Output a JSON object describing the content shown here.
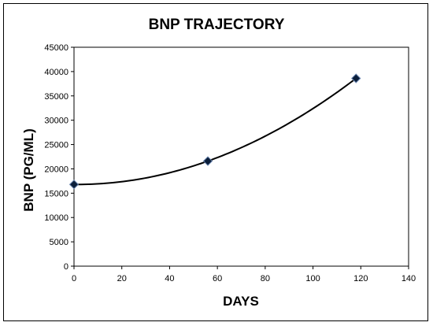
{
  "chart_data": {
    "type": "scatter",
    "title": "BNP TRAJECTORY",
    "xlabel": "DAYS",
    "ylabel": "BNP (PG/ML)",
    "xlim": [
      0,
      140
    ],
    "ylim": [
      0,
      45000
    ],
    "x_ticks": [
      "0",
      "20",
      "40",
      "60",
      "80",
      "100",
      "120",
      "140"
    ],
    "y_ticks": [
      "0",
      "5000",
      "10000",
      "15000",
      "20000",
      "25000",
      "30000",
      "35000",
      "40000",
      "45000"
    ],
    "grid": false,
    "legend": "none",
    "trendline": "polynomial",
    "series": [
      {
        "x": [
          0,
          56,
          118
        ],
        "y": [
          16800,
          21600,
          38600
        ],
        "marker": "diamond",
        "color": "#0b1e3a"
      }
    ]
  }
}
